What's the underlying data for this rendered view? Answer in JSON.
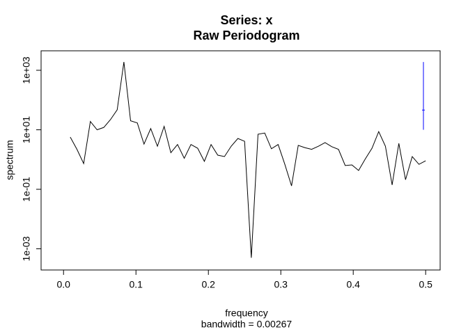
{
  "chart_data": {
    "type": "line",
    "title": "Series: x",
    "subtitle": "Raw Periodogram",
    "x_label": "frequency",
    "x_sublabel": "bandwidth = 0.00267",
    "y_label": "spectrum",
    "log_y": true,
    "color": "#000000",
    "x": [
      0.00926,
      0.01852,
      0.02778,
      0.03704,
      0.0463,
      0.05556,
      0.06481,
      0.07407,
      0.08333,
      0.09259,
      0.10185,
      0.11111,
      0.12037,
      0.12963,
      0.13889,
      0.14815,
      0.15741,
      0.16667,
      0.17593,
      0.18519,
      0.19444,
      0.2037,
      0.21296,
      0.22222,
      0.23148,
      0.24074,
      0.25,
      0.25926,
      0.26852,
      0.27778,
      0.28704,
      0.2963,
      0.30556,
      0.31481,
      0.32407,
      0.33333,
      0.34259,
      0.35185,
      0.36111,
      0.37037,
      0.37963,
      0.38889,
      0.39815,
      0.40741,
      0.41667,
      0.42593,
      0.43519,
      0.44444,
      0.4537,
      0.46296,
      0.47222,
      0.48148,
      0.49074,
      0.5
    ],
    "values": [
      5.7,
      2.2,
      0.73,
      19,
      10,
      12,
      22,
      47,
      1900,
      20,
      17,
      3.3,
      11,
      2.8,
      13,
      1.7,
      3.2,
      1.1,
      3.2,
      2.4,
      0.87,
      3.2,
      1.4,
      1.26,
      2.8,
      5.1,
      4.1,
      0.0005,
      7.1,
      7.8,
      2.3,
      3.2,
      0.69,
      0.13,
      3.0,
      2.5,
      2.2,
      2.8,
      3.7,
      2.7,
      2.2,
      0.63,
      0.66,
      0.43,
      1.05,
      2.4,
      8.7,
      2.8,
      0.14,
      3.5,
      0.21,
      1.26,
      0.69,
      0.91
    ],
    "ci_bar": {
      "color": "#0000ff",
      "center": 46,
      "lower": 10,
      "upper": 1900
    },
    "xlim": [
      -0.031,
      0.52
    ],
    "xticks": [
      {
        "value": 0,
        "label": "0.0"
      },
      0.1,
      0.2,
      0.3,
      0.4,
      0.5
    ],
    "ylim": [
      0.000194,
      4520
    ],
    "yticks": [
      {
        "value": 1000,
        "label": "1e+03"
      },
      {
        "value": 10,
        "label": "1e+01"
      },
      {
        "value": 0.1,
        "label": "1e-01"
      },
      {
        "value": 0.001,
        "label": "1e-03"
      }
    ]
  }
}
